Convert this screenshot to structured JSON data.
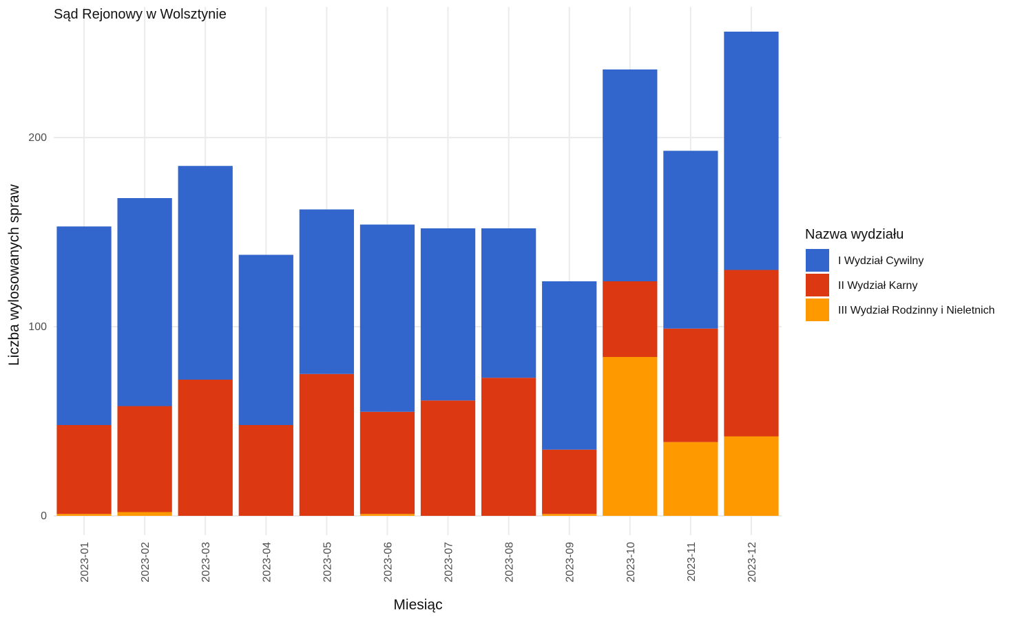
{
  "chart_data": {
    "type": "bar",
    "stacked": true,
    "title": "Sąd Rejonowy w Wolsztynie",
    "xlabel": "Miesiąc",
    "ylabel": "Liczba wylosowanych spraw",
    "ylim": [
      0,
      262
    ],
    "yticks": [
      0,
      100,
      200
    ],
    "grid": true,
    "legend": {
      "title": "Nazwa wydziału",
      "position": "right"
    },
    "categories": [
      "2023-01",
      "2023-02",
      "2023-03",
      "2023-04",
      "2023-05",
      "2023-06",
      "2023-07",
      "2023-08",
      "2023-09",
      "2023-10",
      "2023-11",
      "2023-12"
    ],
    "series": [
      {
        "name": "III Wydział Rodzinny i Nieletnich",
        "color": "#FF9900",
        "values": [
          1,
          2,
          0,
          0,
          0,
          1,
          0,
          0,
          1,
          84,
          39,
          42
        ]
      },
      {
        "name": "II Wydział Karny",
        "color": "#DC3912",
        "values": [
          47,
          56,
          72,
          48,
          75,
          54,
          61,
          73,
          34,
          40,
          60,
          88
        ]
      },
      {
        "name": "I Wydział Cywilny",
        "color": "#3366CC",
        "values": [
          105,
          110,
          113,
          90,
          87,
          99,
          91,
          79,
          89,
          112,
          94,
          126
        ]
      }
    ],
    "legend_order": [
      "I Wydział Cywilny",
      "II Wydział Karny",
      "III Wydział Rodzinny i Nieletnich"
    ]
  }
}
